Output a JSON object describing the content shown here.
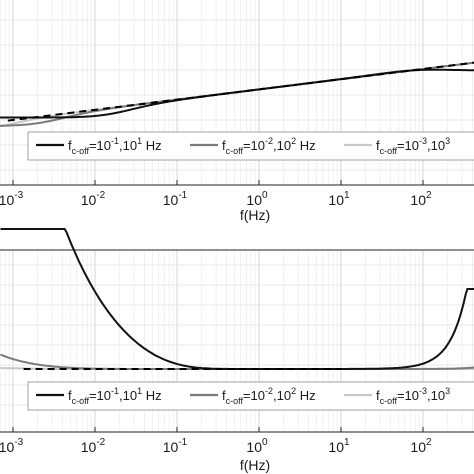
{
  "chart_data": [
    {
      "type": "line",
      "xscale": "log",
      "xlim": [
        0.0005,
        1000
      ],
      "xlabel": "f(Hz)",
      "xticks": [
        {
          "base": "10",
          "exp": "-3"
        },
        {
          "base": "10",
          "exp": "-2"
        },
        {
          "base": "10",
          "exp": "-1"
        },
        {
          "base": "10",
          "exp": "0"
        },
        {
          "base": "10",
          "exp": "1"
        },
        {
          "base": "10",
          "exp": "2"
        }
      ],
      "grid": true,
      "legend_position": "bottom",
      "series": [
        {
          "legend": {
            "base": "f",
            "sub": "c-off",
            "text_a": "=10",
            "exp_a": "-1",
            "text_b": ",10",
            "exp_b": "1",
            "unit": " Hz"
          },
          "color": "#111111"
        },
        {
          "legend": {
            "base": "f",
            "sub": "c-off",
            "text_a": "=10",
            "exp_a": "-2",
            "text_b": ",10",
            "exp_b": "2",
            "unit": " Hz"
          },
          "color": "#7a7a7a"
        },
        {
          "legend": {
            "base": "f",
            "sub": "c-off",
            "text_a": "=10",
            "exp_a": "-3",
            "text_b": ",10",
            "exp_b": "3",
            "unit": ""
          },
          "color": "#c8c8c8"
        }
      ],
      "reference_line": {
        "style": "dashed",
        "color": "#000000"
      }
    },
    {
      "type": "line",
      "xscale": "log",
      "xlim": [
        0.0005,
        1000
      ],
      "xlabel": "f(Hz)",
      "xticks": [
        {
          "base": "10",
          "exp": "-3"
        },
        {
          "base": "10",
          "exp": "-2"
        },
        {
          "base": "10",
          "exp": "-1"
        },
        {
          "base": "10",
          "exp": "0"
        },
        {
          "base": "10",
          "exp": "1"
        },
        {
          "base": "10",
          "exp": "2"
        }
      ],
      "grid": true,
      "legend_position": "bottom",
      "series": [
        {
          "legend": {
            "base": "f",
            "sub": "c-off",
            "text_a": "=10",
            "exp_a": "-1",
            "text_b": ",10",
            "exp_b": "1",
            "unit": " Hz"
          },
          "color": "#111111"
        },
        {
          "legend": {
            "base": "f",
            "sub": "c-off",
            "text_a": "=10",
            "exp_a": "-2",
            "text_b": ",10",
            "exp_b": "2",
            "unit": " Hz"
          },
          "color": "#7a7a7a"
        },
        {
          "legend": {
            "base": "f",
            "sub": "c-off",
            "text_a": "=10",
            "exp_a": "-3",
            "text_b": ",10",
            "exp_b": "3",
            "unit": ""
          },
          "color": "#c8c8c8"
        }
      ],
      "reference_line": {
        "style": "dashed",
        "color": "#000000"
      }
    }
  ]
}
